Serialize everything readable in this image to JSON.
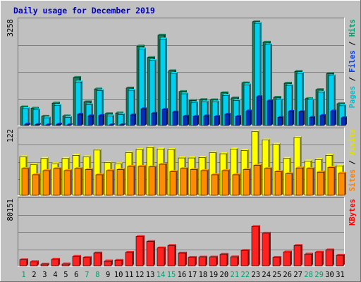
{
  "chart_data": {
    "type": "bar",
    "title": "Daily usage for December 2019",
    "categories": [
      "1",
      "2",
      "3",
      "4",
      "5",
      "6",
      "7",
      "8",
      "9",
      "10",
      "11",
      "12",
      "13",
      "14",
      "15",
      "16",
      "17",
      "18",
      "19",
      "20",
      "21",
      "22",
      "23",
      "24",
      "25",
      "26",
      "27",
      "28",
      "29",
      "30",
      "31"
    ],
    "weekend_days": [
      "1",
      "7",
      "8",
      "14",
      "15",
      "21",
      "22",
      "28",
      "29"
    ],
    "panels": [
      {
        "id": "hits",
        "ymax_label": "3258",
        "ymax": 3258,
        "right_label_parts": [
          {
            "text": "Pages",
            "color": "#00c0d0"
          },
          {
            "text": " / ",
            "color": "#000000"
          },
          {
            "text": "Files",
            "color": "#0040ff"
          },
          {
            "text": " / ",
            "color": "#000000"
          },
          {
            "text": "Hits",
            "color": "#00a070"
          }
        ],
        "series": [
          {
            "name": "Hits",
            "color": "#1a7a5a",
            "values": [
              580,
              540,
              290,
              700,
              300,
              1500,
              740,
              1140,
              370,
              390,
              1170,
              2480,
              2120,
              2820,
              1710,
              1060,
              780,
              810,
              800,
              1020,
              860,
              1330,
              3240,
              2600,
              880,
              1320,
              1690,
              840,
              1120,
              1620,
              680
            ]
          },
          {
            "name": "Files",
            "color": "#00d0f0",
            "values": [
              530,
              490,
              240,
              630,
              250,
              1360,
              650,
              1090,
              300,
              340,
              1100,
              2390,
              2030,
              2700,
              1630,
              990,
              710,
              740,
              740,
              940,
              780,
              1270,
              3190,
              2520,
              800,
              1250,
              1630,
              800,
              1040,
              1550,
              620
            ]
          },
          {
            "name": "Pages",
            "color": "#0030c0",
            "values": [
              40,
              30,
              20,
              40,
              20,
              350,
              300,
              310,
              20,
              25,
              330,
              520,
              380,
              500,
              420,
              290,
              280,
              300,
              280,
              350,
              280,
              450,
              900,
              770,
              250,
              440,
              430,
              250,
              310,
              450,
              240
            ]
          }
        ]
      },
      {
        "id": "visits",
        "ymax_label": "122",
        "ymax": 122,
        "right_label_parts": [
          {
            "text": "Sites",
            "color": "#ff8000"
          },
          {
            "text": " / ",
            "color": "#000000"
          },
          {
            "text": "Visits",
            "color": "#e0e000"
          }
        ],
        "series": [
          {
            "name": "Visits",
            "color": "#ffff00",
            "values": [
              73,
              58,
              70,
              60,
              70,
              76,
              73,
              86,
              62,
              60,
              81,
              87,
              91,
              88,
              87,
              71,
              71,
              72,
              81,
              79,
              88,
              85,
              121,
              105,
              97,
              70,
              110,
              65,
              68,
              76,
              56
            ]
          },
          {
            "name": "Sites",
            "color": "#ff8c00",
            "values": [
              51,
              39,
              47,
              51,
              47,
              51,
              49,
              39,
              47,
              49,
              55,
              55,
              54,
              59,
              45,
              51,
              49,
              47,
              39,
              47,
              39,
              49,
              57,
              51,
              45,
              41,
              52,
              51,
              44,
              53,
              42
            ]
          }
        ]
      },
      {
        "id": "kbytes",
        "ymax_label": "80151",
        "ymax": 80151,
        "right_label_parts": [
          {
            "text": "KBytes",
            "color": "#ff0000"
          }
        ],
        "series": [
          {
            "name": "KBytes",
            "color": "#ff2020",
            "values": [
              7500,
              5000,
              2000,
              8000,
              2200,
              11500,
              10200,
              15800,
              5900,
              6800,
              16500,
              36200,
              30000,
              22000,
              25000,
              15700,
              10400,
              10800,
              10800,
              14200,
              11000,
              19000,
              48500,
              40200,
              10400,
              17000,
              25000,
              14400,
              16800,
              19600,
              13000
            ]
          }
        ]
      }
    ],
    "grid": true,
    "legend": "right"
  }
}
